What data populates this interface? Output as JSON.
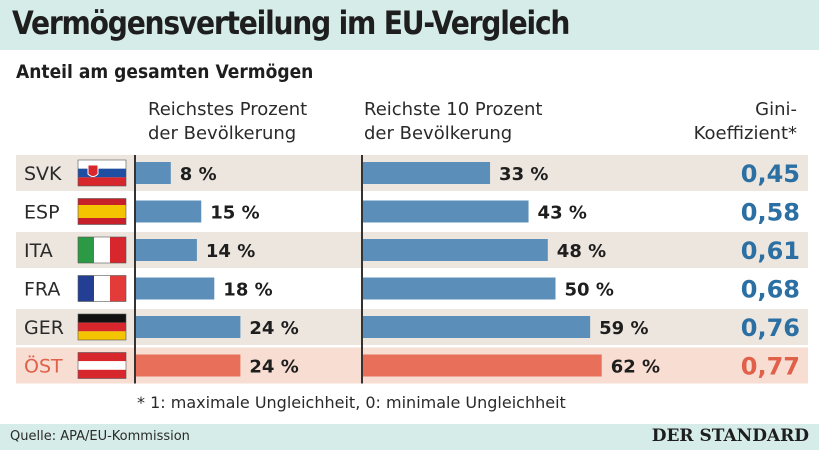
{
  "header": {
    "title": "Vermögensverteilung im EU-Vergleich"
  },
  "subtitle": "Anteil am gesamten Vermögen",
  "columns": {
    "top1_line1": "Reichstes Prozent",
    "top1_line2": "der Bevölkerung",
    "top10_line1": "Reichste 10 Prozent",
    "top10_line2": "der Bevölkerung",
    "gini_line1": "Gini-",
    "gini_line2": "Koeffizient*"
  },
  "footnote": "* 1: maximale Ungleichheit, 0: minimale Ungleichheit",
  "source": "Quelle: APA/EU-Kommission",
  "brand": "DER STANDARD",
  "colors": {
    "bar": "#5b8fb9",
    "highlight_bar": "#e8705a",
    "row_band": "#ece6df",
    "highlight_band": "#f7ddd2",
    "gini": "#2b6fa3",
    "highlight_text": "#e0604a"
  },
  "chart_data": {
    "type": "bar",
    "categories": [
      "SVK",
      "ESP",
      "ITA",
      "FRA",
      "GER",
      "ÖST"
    ],
    "highlight": "ÖST",
    "series": [
      {
        "name": "Reichstes Prozent der Bevölkerung",
        "values": [
          8,
          15,
          14,
          18,
          24,
          24
        ],
        "labels": [
          "8 %",
          "15 %",
          "14 %",
          "18 %",
          "24 %",
          "24 %"
        ]
      },
      {
        "name": "Reichste 10 Prozent der Bevölkerung",
        "values": [
          33,
          43,
          48,
          50,
          59,
          62
        ],
        "labels": [
          "33 %",
          "43 %",
          "48 %",
          "50 %",
          "59 %",
          "62 %"
        ]
      },
      {
        "name": "Gini-Koeffizient",
        "values": [
          0.45,
          0.58,
          0.61,
          0.68,
          0.76,
          0.77
        ],
        "labels": [
          "0,45",
          "0,58",
          "0,61",
          "0,68",
          "0,76",
          "0,77"
        ]
      }
    ],
    "flags": [
      {
        "country": "SVK",
        "stripes": [
          "#ffffff",
          "#1f4fa3",
          "#d8262d"
        ],
        "orientation": "horizontal",
        "emblem": true
      },
      {
        "country": "ESP",
        "stripes": [
          "#c8202b",
          "#f5c400",
          "#f5c400",
          "#c8202b"
        ],
        "orientation": "horizontal",
        "emblem": false
      },
      {
        "country": "ITA",
        "stripes": [
          "#2c9a45",
          "#ffffff",
          "#d8262d"
        ],
        "orientation": "vertical",
        "emblem": false
      },
      {
        "country": "FRA",
        "stripes": [
          "#233f94",
          "#ffffff",
          "#e33a3a"
        ],
        "orientation": "vertical",
        "emblem": false
      },
      {
        "country": "GER",
        "stripes": [
          "#111111",
          "#d8262d",
          "#f5c400"
        ],
        "orientation": "horizontal",
        "emblem": false
      },
      {
        "country": "ÖST",
        "stripes": [
          "#d8262d",
          "#ffffff",
          "#d8262d"
        ],
        "orientation": "horizontal",
        "emblem": false
      }
    ]
  }
}
